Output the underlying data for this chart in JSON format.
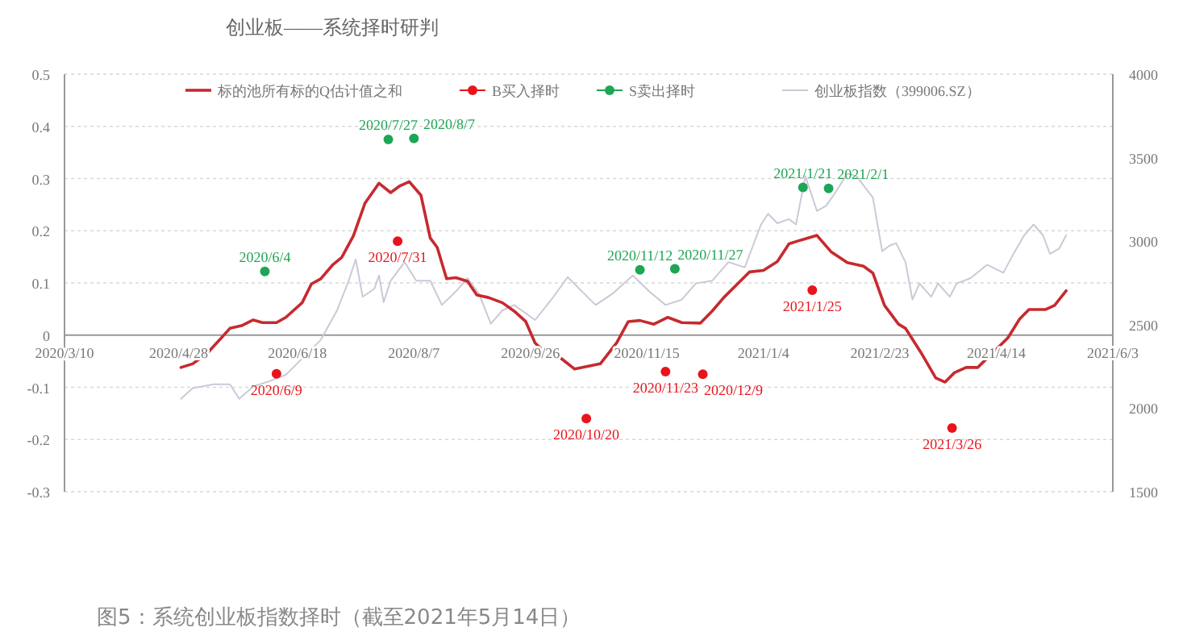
{
  "chart_data": {
    "type": "line",
    "title": "创业板——系统择时研判",
    "annotations": [
      "图5：系统创业板指数择时（截至2021年5月14日）",
      {
        "text": "2020/6/9",
        "x": "2020-06-09",
        "y": -0.074
      },
      {
        "text": "2020/7/31",
        "x": "2020-07-31",
        "y": 0.18
      },
      {
        "text": "2020/10/20",
        "x": "2020-10-20",
        "y": -0.16
      },
      {
        "text": "2020/11/23",
        "x": "2020-11-23",
        "y": -0.07
      },
      {
        "text": "2020/12/9",
        "x": "2020-12-09",
        "y": -0.075
      },
      {
        "text": "2021/1/25",
        "x": "2021-01-25",
        "y": 0.086
      },
      {
        "text": "2021/3/26",
        "x": "2021-03-26",
        "y": -0.178
      },
      {
        "text": "2020/6/4",
        "x": "2020-06-04",
        "y": 0.122
      },
      {
        "text": "2020/7/27",
        "x": "2020-07-27",
        "y": 0.375
      },
      {
        "text": "2020/8/7",
        "x": "2020-08-07",
        "y": 0.377
      },
      {
        "text": "2020/11/12",
        "x": "2020-11-12",
        "y": 0.125
      },
      {
        "text": "2020/11/27",
        "x": "2020-11-27",
        "y": 0.127
      },
      {
        "text": "2021/1/21",
        "x": "2021-01-21",
        "y": 0.283
      },
      {
        "text": "2021/2/1",
        "x": "2021-02-01",
        "y": 0.281
      }
    ],
    "xlim": [
      "2020-03-10",
      "2021-06-03"
    ],
    "xticks": [
      {
        "value": "2020-03-10",
        "label": "2020/3/10"
      },
      {
        "value": "2020-04-28",
        "label": "2020/4/28"
      },
      {
        "value": "2020-06-18",
        "label": "2020/6/18"
      },
      {
        "value": "2020-08-07",
        "label": "2020/8/7"
      },
      {
        "value": "2020-09-26",
        "label": "2020/9/26"
      },
      {
        "value": "2020-11-15",
        "label": "2020/11/15"
      },
      {
        "value": "2021-01-04",
        "label": "2021/1/4"
      },
      {
        "value": "2021-02-23",
        "label": "2021/2/23"
      },
      {
        "value": "2021-04-14",
        "label": "2021/4/14"
      },
      {
        "value": "2021-06-03",
        "label": "2021/6/3"
      }
    ],
    "ylim": [
      -0.3,
      0.5
    ],
    "yticks": [
      -0.3,
      -0.2,
      -0.1,
      0,
      0.1,
      0.2,
      0.3,
      0.4,
      0.5
    ],
    "y2lim": [
      1500,
      4000
    ],
    "y2ticks": [
      1500,
      2000,
      2500,
      3000,
      3500,
      4000
    ],
    "grid": "y",
    "legend": "top",
    "series": [
      {
        "name": "标的池所有标的Q估计值之和",
        "type": "line",
        "color": "#c62a2f",
        "x": [
          "2020-04-29",
          "2020-05-04",
          "2020-05-10",
          "2020-05-16",
          "2020-05-20",
          "2020-05-25",
          "2020-05-30",
          "2020-06-03",
          "2020-06-09",
          "2020-06-13",
          "2020-06-20",
          "2020-06-24",
          "2020-06-28",
          "2020-07-03",
          "2020-07-07",
          "2020-07-12",
          "2020-07-17",
          "2020-07-23",
          "2020-07-28",
          "2020-08-01",
          "2020-08-05",
          "2020-08-10",
          "2020-08-14",
          "2020-08-17",
          "2020-08-21",
          "2020-08-25",
          "2020-08-30",
          "2020-09-03",
          "2020-09-08",
          "2020-09-14",
          "2020-09-19",
          "2020-09-24",
          "2020-09-28",
          "2020-10-03",
          "2020-10-09",
          "2020-10-15",
          "2020-10-26",
          "2020-11-02",
          "2020-11-07",
          "2020-11-12",
          "2020-11-18",
          "2020-11-24",
          "2020-11-30",
          "2020-12-08",
          "2020-12-13",
          "2020-12-18",
          "2020-12-25",
          "2020-12-29",
          "2021-01-04",
          "2021-01-10",
          "2021-01-15",
          "2021-01-20",
          "2021-01-27",
          "2021-02-02",
          "2021-02-09",
          "2021-02-16",
          "2021-02-20",
          "2021-02-25",
          "2021-03-03",
          "2021-03-06",
          "2021-03-13",
          "2021-03-19",
          "2021-03-23",
          "2021-03-27",
          "2021-04-01",
          "2021-04-06",
          "2021-04-12",
          "2021-04-19",
          "2021-04-24",
          "2021-04-28",
          "2021-05-05",
          "2021-05-09",
          "2021-05-14"
        ],
        "values": [
          -0.062,
          -0.055,
          -0.036,
          -0.007,
          0.013,
          0.018,
          0.029,
          0.024,
          0.024,
          0.034,
          0.062,
          0.098,
          0.108,
          0.134,
          0.149,
          0.19,
          0.253,
          0.291,
          0.273,
          0.286,
          0.294,
          0.268,
          0.186,
          0.168,
          0.108,
          0.11,
          0.103,
          0.077,
          0.072,
          0.062,
          0.046,
          0.026,
          -0.015,
          -0.036,
          -0.044,
          -0.065,
          -0.055,
          -0.015,
          0.026,
          0.028,
          0.021,
          0.034,
          0.024,
          0.023,
          0.046,
          0.072,
          0.103,
          0.121,
          0.124,
          0.141,
          0.175,
          0.182,
          0.191,
          0.16,
          0.139,
          0.132,
          0.119,
          0.057,
          0.021,
          0.013,
          -0.036,
          -0.082,
          -0.09,
          -0.072,
          -0.062,
          -0.062,
          -0.036,
          -0.005,
          0.031,
          0.049,
          0.049,
          0.057,
          0.085
        ]
      },
      {
        "name": "B买入择时",
        "type": "scatter",
        "marker": "circle",
        "color": "#e8141c",
        "x": [
          "2020-06-09",
          "2020-07-31",
          "2020-10-20",
          "2020-11-23",
          "2020-12-09",
          "2021-01-25",
          "2021-03-26"
        ],
        "values": [
          -0.074,
          0.18,
          -0.16,
          -0.07,
          -0.075,
          0.086,
          -0.178
        ]
      },
      {
        "name": "S卖出择时",
        "type": "scatter",
        "marker": "circle",
        "color": "#1ea555",
        "x": [
          "2020-06-04",
          "2020-07-27",
          "2020-08-07",
          "2020-11-12",
          "2020-11-27",
          "2021-01-21",
          "2021-02-01"
        ],
        "values": [
          0.122,
          0.375,
          0.377,
          0.125,
          0.127,
          0.283,
          0.281
        ]
      },
      {
        "name": "创业板指数（399006.SZ）",
        "type": "line",
        "axis": "y2",
        "color": "#cdc8d6",
        "x": [
          "2020-04-29",
          "2020-05-04",
          "2020-05-13",
          "2020-05-20",
          "2020-05-24",
          "2020-05-30",
          "2020-06-06",
          "2020-06-13",
          "2020-06-20",
          "2020-06-28",
          "2020-07-05",
          "2020-07-10",
          "2020-07-13",
          "2020-07-16",
          "2020-07-21",
          "2020-07-23",
          "2020-07-25",
          "2020-07-28",
          "2020-08-03",
          "2020-08-08",
          "2020-08-14",
          "2020-08-19",
          "2020-08-25",
          "2020-08-30",
          "2020-09-04",
          "2020-09-09",
          "2020-09-14",
          "2020-09-19",
          "2020-09-28",
          "2020-10-05",
          "2020-10-12",
          "2020-10-17",
          "2020-10-24",
          "2020-10-31",
          "2020-11-09",
          "2020-11-16",
          "2020-11-23",
          "2020-11-30",
          "2020-12-06",
          "2020-12-13",
          "2020-12-20",
          "2020-12-27",
          "2021-01-03",
          "2021-01-06",
          "2021-01-10",
          "2021-01-15",
          "2021-01-18",
          "2021-01-22",
          "2021-01-27",
          "2021-01-31",
          "2021-02-04",
          "2021-02-09",
          "2021-02-13",
          "2021-02-20",
          "2021-02-24",
          "2021-02-27",
          "2021-03-02",
          "2021-03-06",
          "2021-03-09",
          "2021-03-12",
          "2021-03-17",
          "2021-03-20",
          "2021-03-25",
          "2021-03-28",
          "2021-04-03",
          "2021-04-10",
          "2021-04-17",
          "2021-04-22",
          "2021-04-26",
          "2021-04-30",
          "2021-05-04",
          "2021-05-07",
          "2021-05-11",
          "2021-05-14"
        ],
        "values": [
          2056,
          2120,
          2143,
          2143,
          2056,
          2130,
          2162,
          2200,
          2297,
          2409,
          2586,
          2763,
          2891,
          2667,
          2715,
          2795,
          2635,
          2763,
          2875,
          2763,
          2763,
          2618,
          2699,
          2779,
          2683,
          2506,
          2586,
          2618,
          2528,
          2650,
          2785,
          2715,
          2618,
          2683,
          2795,
          2699,
          2618,
          2650,
          2747,
          2763,
          2875,
          2843,
          3100,
          3164,
          3107,
          3132,
          3100,
          3389,
          3181,
          3213,
          3293,
          3405,
          3389,
          3261,
          2940,
          2972,
          2988,
          2875,
          2650,
          2747,
          2667,
          2747,
          2667,
          2747,
          2779,
          2859,
          2811,
          2940,
          3036,
          3100,
          3036,
          2924,
          2956,
          3036
        ]
      }
    ]
  }
}
